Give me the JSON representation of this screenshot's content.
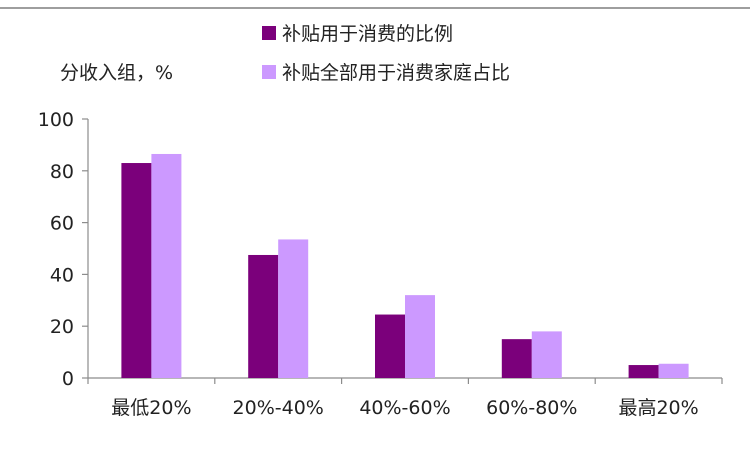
{
  "chart_data": {
    "type": "bar",
    "ylabel": "分收入组，%",
    "ylim": [
      0,
      100
    ],
    "yticks": [
      0,
      20,
      40,
      60,
      80,
      100
    ],
    "categories": [
      "最低20%",
      "20%-40%",
      "40%-60%",
      "60%-80%",
      "最高20%"
    ],
    "series": [
      {
        "name": "补贴用于消费的比例",
        "color": "#7b007b",
        "values": [
          83,
          47.5,
          24.5,
          15,
          5
        ]
      },
      {
        "name": "补贴全部用于消费家庭占比",
        "color": "#cc99ff",
        "values": [
          86.5,
          53.5,
          32,
          18,
          5.5
        ]
      }
    ],
    "legend_position": "top",
    "grid": false
  }
}
